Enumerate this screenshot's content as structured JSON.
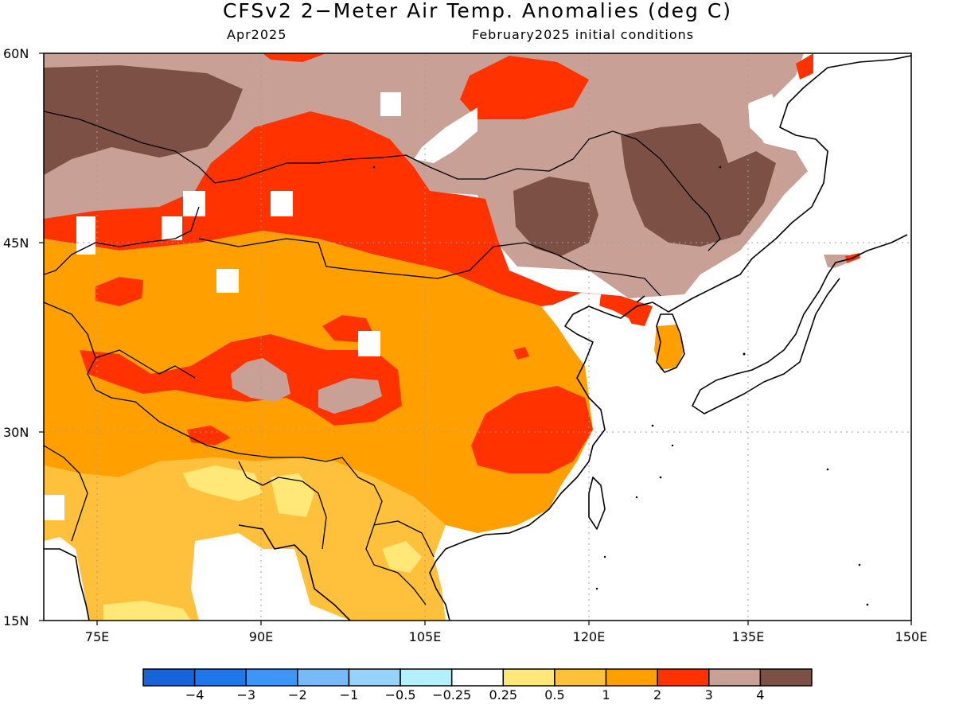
{
  "title": "CFSv2 2−Meter Air Temp. Anomalies (deg C)",
  "subtitle_left": "Apr2025",
  "subtitle_right": "February2025 initial conditions",
  "lat_labels": [
    "60N",
    "45N",
    "30N",
    "15N"
  ],
  "lon_labels": [
    "75E",
    "90E",
    "105E",
    "120E",
    "135E",
    "150E"
  ],
  "colorbar": {
    "colors": [
      "#1565d8",
      "#1e78ea",
      "#3c96f5",
      "#78b9fa",
      "#96d2fa",
      "#b4f0fa",
      "#ffffff",
      "#ffe878",
      "#ffc03c",
      "#ffa000",
      "#ff3200",
      "#c8a096",
      "#7d5046"
    ],
    "labels": [
      "−4",
      "−3",
      "−2",
      "−1",
      "−0.5",
      "−0.25",
      "0.25",
      "0.5",
      "1",
      "2",
      "3",
      "4"
    ]
  }
}
